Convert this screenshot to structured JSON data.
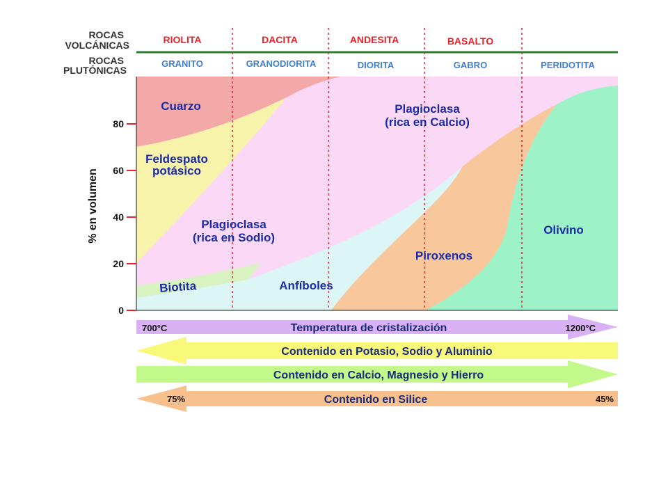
{
  "header": {
    "volcanic_label_line1": "ROCAS",
    "volcanic_label_line2": "VOLCÁNICAS",
    "plutonic_label_line1": "ROCAS",
    "plutonic_label_line2": "PLUTÓNICAS",
    "volcanic_rocks": [
      "RIOLITA",
      "DACITA",
      "ANDESITA",
      "BASALTO"
    ],
    "plutonic_rocks": [
      "GRANITO",
      "GRANODIORITA",
      "DIORITA",
      "GABRO",
      "PERIDOTITA"
    ]
  },
  "y_axis": {
    "label": "% en volumen",
    "ticks": [
      "0",
      "20",
      "40",
      "60",
      "80"
    ]
  },
  "minerals": {
    "cuarzo": "Cuarzo",
    "feldespato_line1": "Feldespato",
    "feldespato_line2": "potásico",
    "plag_sodio_line1": "Plagioclasa",
    "plag_sodio_line2": "(rica en Sodio)",
    "plag_calcio_line1": "Plagioclasa",
    "plag_calcio_line2": "(rica en Calcio)",
    "biotita": "Biotita",
    "anfiboles": "Anfíboles",
    "piroxenos": "Piroxenos",
    "olivino": "Olivino"
  },
  "arrows": {
    "temperatura": {
      "label": "Temperatura de cristalización",
      "start": "700°C",
      "end": "1200°C"
    },
    "potasio": {
      "label": "Contenido en Potasio, Sodio y Aluminio"
    },
    "calcio": {
      "label": "Contenido en Calcio, Magnesio y Hierro"
    },
    "silice": {
      "label": "Contenido en Silice",
      "start": "75%",
      "end": "45%"
    }
  },
  "colors": {
    "cuarzo": "#f4a9a9",
    "feldespato": "#f8f3aa",
    "plagioclasa": "#fbd9f6",
    "biotita": "#d9f2c2",
    "anfiboles": "#dcf6f6",
    "piroxenos": "#f8c79c",
    "olivino": "#9ef2c8",
    "header_line": "#2e7d32",
    "divider": "#e8232a",
    "arrow_temp": "#d8b2f2",
    "arrow_potasio": "#f8f87a",
    "arrow_calcio": "#c2f98a",
    "arrow_silice": "#f8c08c"
  }
}
